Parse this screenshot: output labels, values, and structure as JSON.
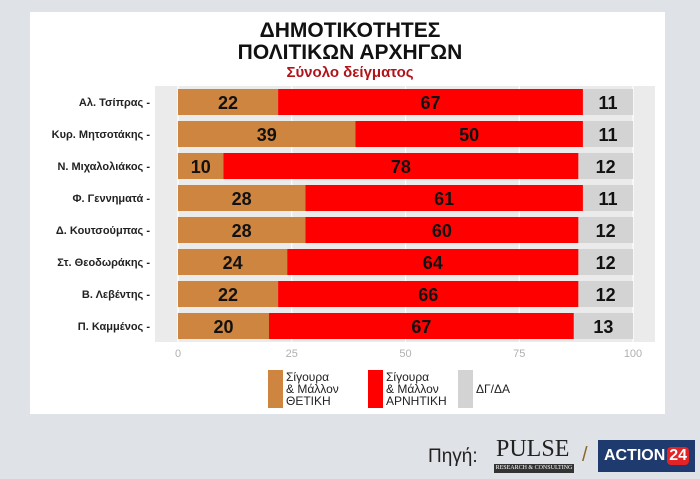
{
  "chart_data": {
    "type": "bar",
    "stacked": true,
    "orientation": "horizontal",
    "title": [
      "ΔΗΜΟΤΙΚΟΤΗΤΕΣ",
      "ΠΟΛΙΤΙΚΩΝ ΑΡΧΗΓΩΝ"
    ],
    "subtitle": "Σύνολο δείγματος",
    "categories": [
      "Αλ. Τσίπρας",
      "Κυρ. Μητσοτάκης",
      "Ν. Μιχαλολιάκος",
      "Φ. Γεννηματά",
      "Δ. Κουτσούμπας",
      "Στ. Θεοδωράκης",
      "Β. Λεβέντης",
      "Π. Καμμένος"
    ],
    "series": [
      {
        "name": "Σίγουρα & Μάλλον ΘΕΤΙΚΗ",
        "legend_lines": [
          "Σίγουρα",
          "& Μάλλον",
          "ΘΕΤΙΚΗ"
        ],
        "color": "#cd853f",
        "values": [
          22,
          39,
          10,
          28,
          28,
          24,
          22,
          20
        ]
      },
      {
        "name": "Σίγουρα & Μάλλον ΑΡΝΗΤΙΚΗ",
        "legend_lines": [
          "Σίγουρα",
          "& Μάλλον",
          "ΑΡΝΗΤΙΚΗ"
        ],
        "color": "#ff0000",
        "values": [
          67,
          50,
          78,
          61,
          60,
          64,
          66,
          67
        ]
      },
      {
        "name": "ΔΓ/ΔΑ",
        "legend_lines": [
          "ΔΓ/ΔΑ"
        ],
        "color": "#d3d3d3",
        "values": [
          11,
          11,
          12,
          11,
          12,
          12,
          12,
          13
        ]
      }
    ],
    "xlim": [
      0,
      100
    ],
    "xticks": [
      0,
      25,
      50,
      75,
      100
    ],
    "grid": true,
    "legend": "bottom"
  },
  "footer": {
    "source_label": "Πηγή:",
    "pulse": "PULSE",
    "pulse_sub": "RESEARCH & CONSULTING",
    "slash": "/",
    "action": "ACTION",
    "action_num": "24"
  }
}
